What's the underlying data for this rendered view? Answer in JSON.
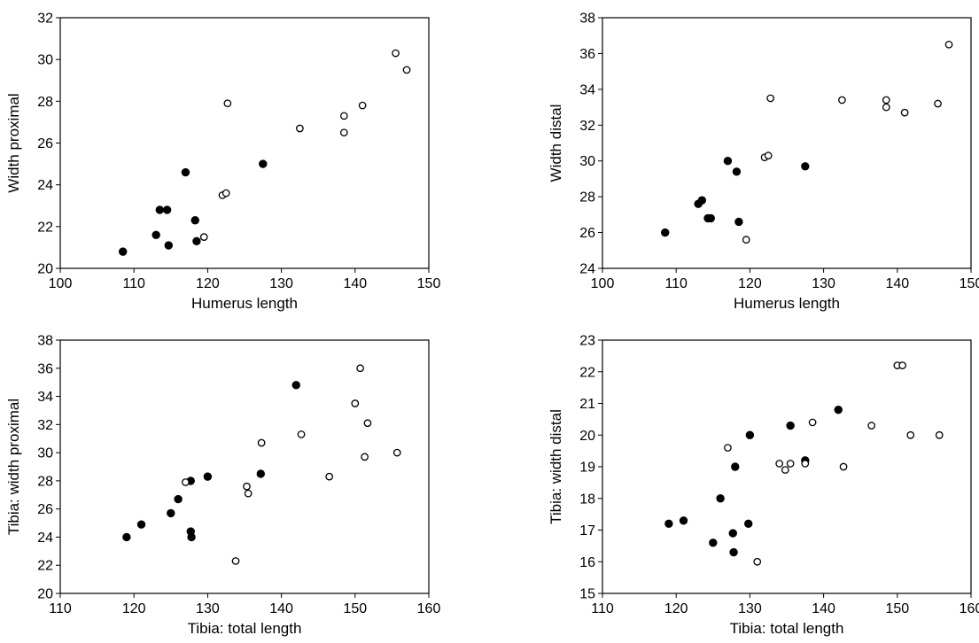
{
  "chart_data": [
    {
      "type": "scatter",
      "title": "",
      "xlabel": "Humerus length",
      "ylabel": "Width proximal",
      "xlim": [
        100,
        150
      ],
      "ylim": [
        20,
        32
      ],
      "xticks": [
        "100",
        "110",
        "120",
        "130",
        "140",
        "150"
      ],
      "yticks": [
        "20",
        "22",
        "24",
        "26",
        "28",
        "30",
        "32"
      ],
      "grid": false,
      "series": [
        {
          "marker": "filled",
          "color": "#000000",
          "points": [
            [
              108.5,
              20.8
            ],
            [
              113.0,
              21.6
            ],
            [
              113.5,
              22.8
            ],
            [
              114.5,
              22.8
            ],
            [
              114.7,
              21.1
            ],
            [
              117.0,
              24.6
            ],
            [
              118.3,
              22.3
            ],
            [
              118.5,
              21.3
            ],
            [
              127.5,
              25.0
            ]
          ]
        },
        {
          "marker": "open",
          "color": "#000000",
          "points": [
            [
              119.5,
              21.5
            ],
            [
              122.0,
              23.5
            ],
            [
              122.5,
              23.6
            ],
            [
              122.7,
              27.9
            ],
            [
              132.5,
              26.7
            ],
            [
              138.5,
              27.3
            ],
            [
              138.5,
              26.5
            ],
            [
              141.0,
              27.8
            ],
            [
              145.5,
              30.3
            ],
            [
              147.0,
              29.5
            ]
          ]
        }
      ]
    },
    {
      "type": "scatter",
      "title": "",
      "xlabel": "Humerus length",
      "ylabel": "Width distal",
      "xlim": [
        100,
        150
      ],
      "ylim": [
        24,
        38
      ],
      "xticks": [
        "100",
        "110",
        "120",
        "130",
        "140",
        "150"
      ],
      "yticks": [
        "24",
        "26",
        "28",
        "30",
        "32",
        "34",
        "36",
        "38"
      ],
      "grid": false,
      "series": [
        {
          "marker": "filled",
          "color": "#000000",
          "points": [
            [
              108.5,
              26.0
            ],
            [
              113.0,
              27.6
            ],
            [
              113.5,
              27.8
            ],
            [
              114.3,
              26.8
            ],
            [
              114.7,
              26.8
            ],
            [
              117.0,
              30.0
            ],
            [
              118.2,
              29.4
            ],
            [
              118.5,
              26.6
            ],
            [
              127.5,
              29.7
            ]
          ]
        },
        {
          "marker": "open",
          "color": "#000000",
          "points": [
            [
              119.5,
              25.6
            ],
            [
              122.0,
              30.2
            ],
            [
              122.5,
              30.3
            ],
            [
              122.8,
              33.5
            ],
            [
              132.5,
              33.4
            ],
            [
              138.5,
              33.4
            ],
            [
              138.5,
              33.0
            ],
            [
              141.0,
              32.7
            ],
            [
              145.5,
              33.2
            ],
            [
              147.0,
              36.5
            ]
          ]
        }
      ]
    },
    {
      "type": "scatter",
      "title": "",
      "xlabel": "Tibia: total length",
      "ylabel": "Tibia: width proximal",
      "xlim": [
        110,
        160
      ],
      "ylim": [
        20,
        38
      ],
      "xticks": [
        "110",
        "120",
        "130",
        "140",
        "150",
        "160"
      ],
      "yticks": [
        "20",
        "22",
        "24",
        "26",
        "28",
        "30",
        "32",
        "34",
        "36",
        "38"
      ],
      "grid": false,
      "series": [
        {
          "marker": "filled",
          "color": "#000000",
          "points": [
            [
              119.0,
              24.0
            ],
            [
              121.0,
              24.9
            ],
            [
              125.0,
              25.7
            ],
            [
              126.0,
              26.7
            ],
            [
              127.7,
              28.0
            ],
            [
              127.7,
              24.4
            ],
            [
              127.8,
              24.0
            ],
            [
              130.0,
              28.3
            ],
            [
              137.2,
              28.5
            ],
            [
              142.0,
              34.8
            ]
          ]
        },
        {
          "marker": "open",
          "color": "#000000",
          "points": [
            [
              127.0,
              27.9
            ],
            [
              133.8,
              22.3
            ],
            [
              135.3,
              27.6
            ],
            [
              135.5,
              27.1
            ],
            [
              137.3,
              30.7
            ],
            [
              142.7,
              31.3
            ],
            [
              146.5,
              28.3
            ],
            [
              150.0,
              33.5
            ],
            [
              150.7,
              36.0
            ],
            [
              151.3,
              29.7
            ],
            [
              151.7,
              32.1
            ],
            [
              155.7,
              30.0
            ]
          ]
        }
      ]
    },
    {
      "type": "scatter",
      "title": "",
      "xlabel": "Tibia: total length",
      "ylabel": "Tibia: width distal",
      "xlim": [
        110,
        160
      ],
      "ylim": [
        15,
        23
      ],
      "xticks": [
        "110",
        "120",
        "130",
        "140",
        "150",
        "160"
      ],
      "yticks": [
        "15",
        "16",
        "17",
        "18",
        "19",
        "20",
        "21",
        "22",
        "23"
      ],
      "grid": false,
      "series": [
        {
          "marker": "filled",
          "color": "#000000",
          "points": [
            [
              119.0,
              17.2
            ],
            [
              121.0,
              17.3
            ],
            [
              125.0,
              16.6
            ],
            [
              126.0,
              18.0
            ],
            [
              127.7,
              16.9
            ],
            [
              127.8,
              16.3
            ],
            [
              128.0,
              19.0
            ],
            [
              129.8,
              17.2
            ],
            [
              130.0,
              20.0
            ],
            [
              135.5,
              20.3
            ],
            [
              137.5,
              19.2
            ],
            [
              142.0,
              20.8
            ]
          ]
        },
        {
          "marker": "open",
          "color": "#000000",
          "points": [
            [
              127.0,
              19.6
            ],
            [
              131.0,
              16.0
            ],
            [
              134.0,
              19.1
            ],
            [
              134.8,
              18.9
            ],
            [
              135.5,
              19.1
            ],
            [
              137.5,
              19.1
            ],
            [
              138.5,
              20.4
            ],
            [
              142.7,
              19.0
            ],
            [
              146.5,
              20.3
            ],
            [
              150.0,
              22.2
            ],
            [
              150.7,
              22.2
            ],
            [
              151.8,
              20.0
            ],
            [
              155.7,
              20.0
            ]
          ]
        }
      ]
    }
  ]
}
